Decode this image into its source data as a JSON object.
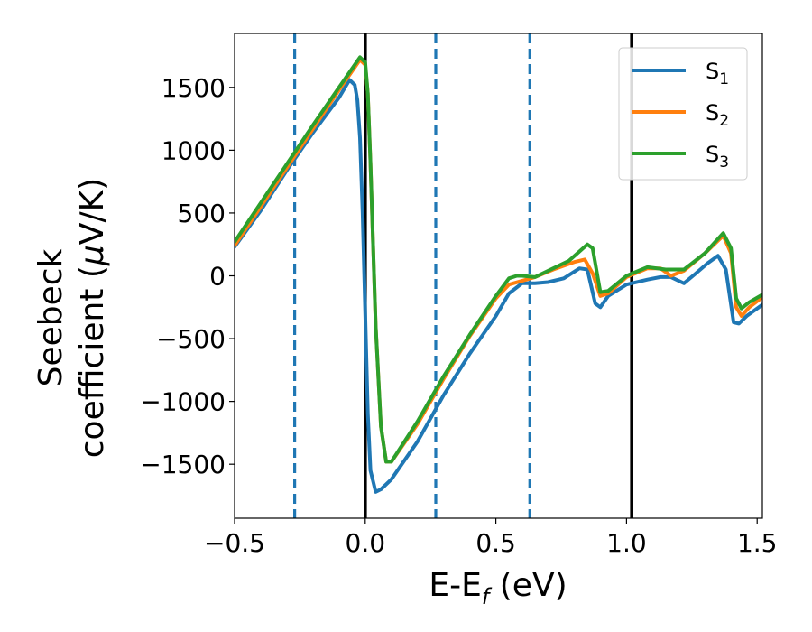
{
  "chart_data": {
    "type": "line",
    "xlabel": {
      "main": "E-E",
      "sub": "f",
      "tail": " (eV)"
    },
    "ylabel": {
      "line1": "Seebeck",
      "line2_prefix": "coefficient  (",
      "mu": "μ",
      "line2_suffix": "V/K)"
    },
    "xlim": [
      -0.5,
      1.52
    ],
    "ylim": [
      -1930,
      1930
    ],
    "xticks": [
      -0.5,
      0.0,
      0.5,
      1.0,
      1.5
    ],
    "xtick_labels": [
      "−0.5",
      "0.0",
      "0.5",
      "1.0",
      "1.5"
    ],
    "yticks": [
      -1500,
      -1000,
      -500,
      0,
      500,
      1000,
      1500
    ],
    "ytick_labels": [
      "−1500",
      "−1000",
      "−500",
      "0",
      "500",
      "1000",
      "1500"
    ],
    "grid": false,
    "legend_placement": "top-right",
    "vlines": [
      {
        "x": -0.27,
        "style": "dashed",
        "color": "#1f77b4"
      },
      {
        "x": 0.0,
        "style": "solid",
        "color": "#000000"
      },
      {
        "x": 0.27,
        "style": "dashed",
        "color": "#1f77b4"
      },
      {
        "x": 0.63,
        "style": "dashed",
        "color": "#1f77b4"
      },
      {
        "x": 1.02,
        "style": "solid",
        "color": "#000000"
      }
    ],
    "series": [
      {
        "name": "S",
        "sub": "1",
        "color": "#1f77b4",
        "points": [
          [
            -0.5,
            230
          ],
          [
            -0.4,
            520
          ],
          [
            -0.3,
            840
          ],
          [
            -0.2,
            1140
          ],
          [
            -0.1,
            1420
          ],
          [
            -0.06,
            1560
          ],
          [
            -0.04,
            1520
          ],
          [
            -0.03,
            1400
          ],
          [
            -0.02,
            1100
          ],
          [
            -0.01,
            500
          ],
          [
            0.0,
            -300
          ],
          [
            0.01,
            -1100
          ],
          [
            0.02,
            -1550
          ],
          [
            0.04,
            -1720
          ],
          [
            0.06,
            -1700
          ],
          [
            0.1,
            -1620
          ],
          [
            0.2,
            -1320
          ],
          [
            0.3,
            -950
          ],
          [
            0.4,
            -620
          ],
          [
            0.5,
            -320
          ],
          [
            0.55,
            -140
          ],
          [
            0.6,
            -60
          ],
          [
            0.65,
            -60
          ],
          [
            0.7,
            -50
          ],
          [
            0.76,
            -20
          ],
          [
            0.82,
            60
          ],
          [
            0.85,
            50
          ],
          [
            0.88,
            -220
          ],
          [
            0.9,
            -250
          ],
          [
            0.93,
            -160
          ],
          [
            1.0,
            -70
          ],
          [
            1.08,
            -30
          ],
          [
            1.13,
            -10
          ],
          [
            1.17,
            -10
          ],
          [
            1.22,
            -60
          ],
          [
            1.26,
            10
          ],
          [
            1.31,
            100
          ],
          [
            1.35,
            160
          ],
          [
            1.38,
            50
          ],
          [
            1.41,
            -370
          ],
          [
            1.43,
            -380
          ],
          [
            1.46,
            -320
          ],
          [
            1.52,
            -230
          ]
        ]
      },
      {
        "name": "S",
        "sub": "2",
        "color": "#ff7f0e",
        "points": [
          [
            -0.5,
            240
          ],
          [
            -0.4,
            550
          ],
          [
            -0.3,
            860
          ],
          [
            -0.2,
            1170
          ],
          [
            -0.1,
            1480
          ],
          [
            -0.02,
            1720
          ],
          [
            0.0,
            1680
          ],
          [
            0.01,
            1450
          ],
          [
            0.02,
            900
          ],
          [
            0.04,
            -400
          ],
          [
            0.06,
            -1200
          ],
          [
            0.08,
            -1480
          ],
          [
            0.1,
            -1480
          ],
          [
            0.2,
            -1180
          ],
          [
            0.3,
            -820
          ],
          [
            0.4,
            -480
          ],
          [
            0.5,
            -180
          ],
          [
            0.55,
            -70
          ],
          [
            0.6,
            -40
          ],
          [
            0.65,
            -10
          ],
          [
            0.72,
            50
          ],
          [
            0.8,
            110
          ],
          [
            0.84,
            130
          ],
          [
            0.87,
            20
          ],
          [
            0.9,
            -160
          ],
          [
            0.93,
            -140
          ],
          [
            1.0,
            -10
          ],
          [
            1.08,
            60
          ],
          [
            1.13,
            60
          ],
          [
            1.17,
            0
          ],
          [
            1.22,
            40
          ],
          [
            1.3,
            180
          ],
          [
            1.37,
            320
          ],
          [
            1.4,
            180
          ],
          [
            1.42,
            -250
          ],
          [
            1.44,
            -320
          ],
          [
            1.47,
            -250
          ],
          [
            1.52,
            -170
          ]
        ]
      },
      {
        "name": "S",
        "sub": "3",
        "color": "#2ca02c",
        "points": [
          [
            -0.5,
            270
          ],
          [
            -0.4,
            580
          ],
          [
            -0.3,
            890
          ],
          [
            -0.2,
            1200
          ],
          [
            -0.1,
            1500
          ],
          [
            -0.02,
            1740
          ],
          [
            0.0,
            1700
          ],
          [
            0.01,
            1450
          ],
          [
            0.02,
            900
          ],
          [
            0.04,
            -400
          ],
          [
            0.06,
            -1200
          ],
          [
            0.08,
            -1480
          ],
          [
            0.1,
            -1480
          ],
          [
            0.2,
            -1160
          ],
          [
            0.3,
            -800
          ],
          [
            0.4,
            -470
          ],
          [
            0.5,
            -160
          ],
          [
            0.55,
            -20
          ],
          [
            0.58,
            0
          ],
          [
            0.6,
            0
          ],
          [
            0.65,
            -10
          ],
          [
            0.7,
            40
          ],
          [
            0.78,
            120
          ],
          [
            0.85,
            250
          ],
          [
            0.87,
            220
          ],
          [
            0.9,
            -130
          ],
          [
            0.93,
            -120
          ],
          [
            1.0,
            0
          ],
          [
            1.08,
            70
          ],
          [
            1.15,
            50
          ],
          [
            1.22,
            50
          ],
          [
            1.3,
            180
          ],
          [
            1.37,
            340
          ],
          [
            1.4,
            220
          ],
          [
            1.42,
            -180
          ],
          [
            1.44,
            -260
          ],
          [
            1.47,
            -210
          ],
          [
            1.52,
            -150
          ]
        ]
      }
    ]
  }
}
